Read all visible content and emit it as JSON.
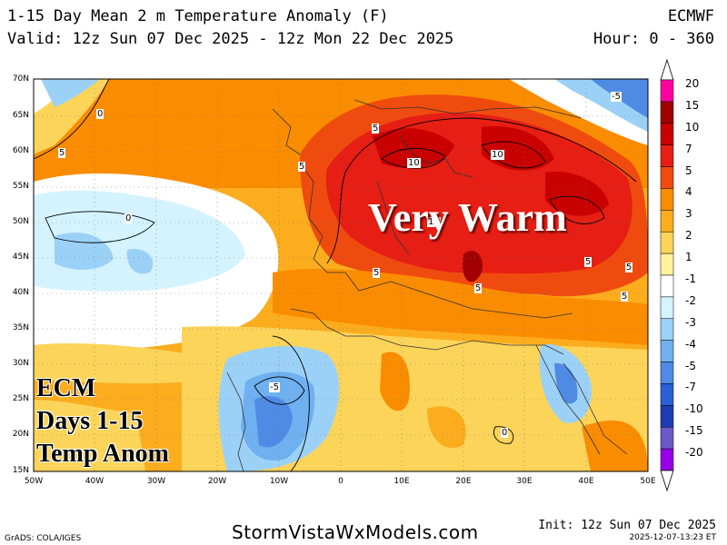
{
  "header": {
    "title": "1-15 Day Mean 2 m Temperature Anomaly (F)",
    "valid": "Valid: 12z Sun 07 Dec 2025 - 12z Mon 22 Dec 2025",
    "model": "ECMWF",
    "hour": "Hour: 0 - 360"
  },
  "map": {
    "latitude_labels": [
      "70N",
      "65N",
      "60N",
      "55N",
      "50N",
      "45N",
      "40N",
      "35N",
      "30N",
      "25N",
      "20N",
      "15N"
    ],
    "longitude_labels": [
      "50W",
      "40W",
      "30W",
      "20W",
      "10W",
      "0",
      "10E",
      "20E",
      "30E",
      "40E",
      "50E"
    ],
    "contour_labels": [
      "5",
      "5",
      "5",
      "10",
      "10",
      "10",
      "5",
      "5",
      "5",
      "5",
      "5",
      "0",
      "0",
      "0",
      "-5",
      "-5"
    ],
    "overlay_main": "Very Warm",
    "overlay_lines": [
      "ECM",
      "Days 1-15",
      "Temp Anom"
    ]
  },
  "legend": {
    "labels": [
      "20",
      "15",
      "10",
      "7",
      "5",
      "4",
      "3",
      "2",
      "1",
      "-1",
      "-2",
      "-3",
      "-4",
      "-5",
      "-7",
      "-10",
      "-15",
      "-20"
    ],
    "colors": [
      "#ff00a0",
      "#a00000",
      "#c80000",
      "#e61e14",
      "#f04b0f",
      "#fa8c00",
      "#fbad1e",
      "#fcd45a",
      "#fff39a",
      "#ffffff",
      "#d4f3ff",
      "#9cd1f7",
      "#6fb0f0",
      "#4f8be5",
      "#2b5fd6",
      "#1e3cb4",
      "#6a5ac8",
      "#9600e6"
    ]
  },
  "footer": {
    "site": "StormVistaWxModels.com",
    "grads": "GrADS: COLA/IGES",
    "init": "Init: 12z Sun 07 Dec 2025",
    "timestamp": "2025-12-07-13:23 ET"
  }
}
